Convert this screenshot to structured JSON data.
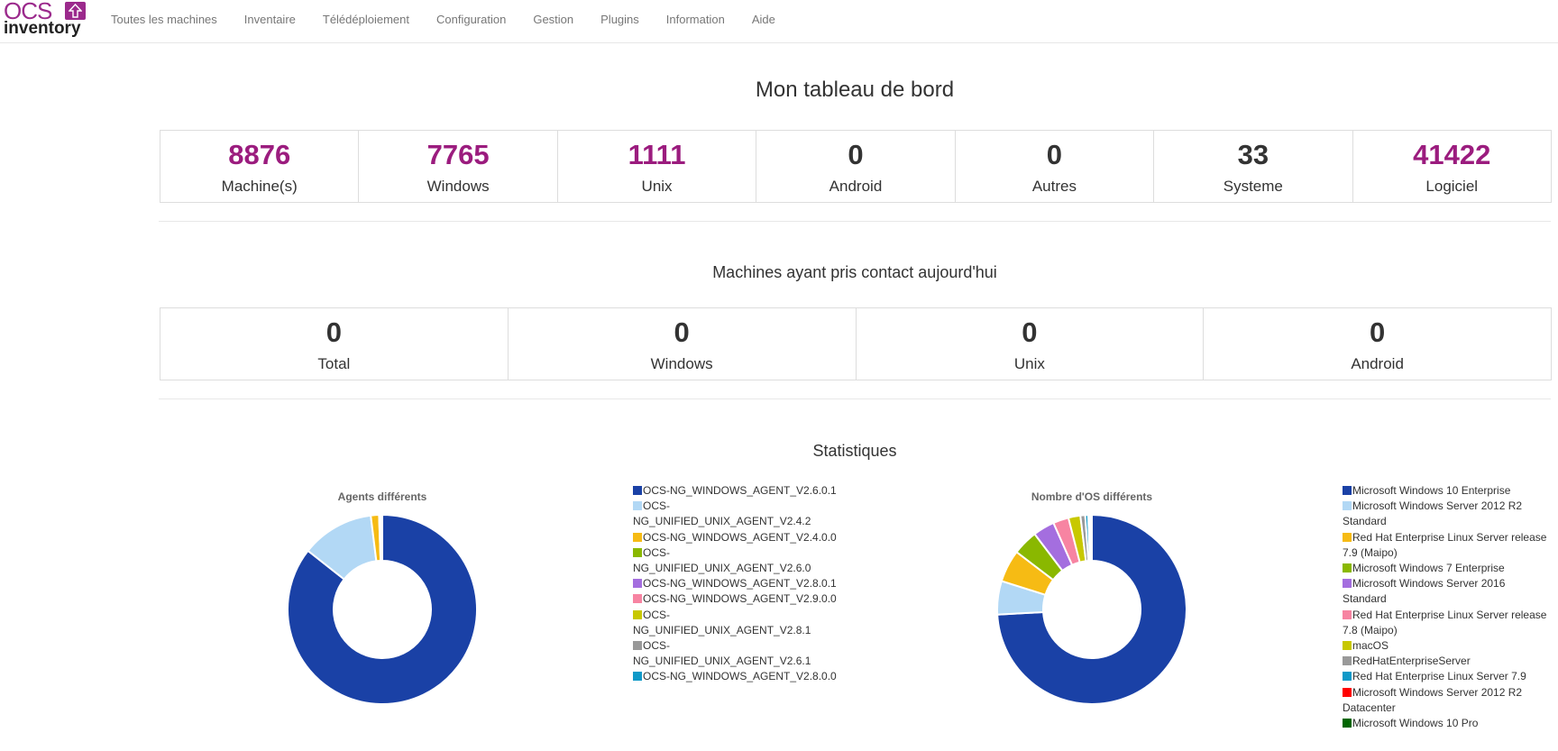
{
  "navbar": {
    "logo": {
      "top": "OCS",
      "bottom": "inventory",
      "icon": "upload-arrow-icon"
    },
    "items": [
      {
        "label": "Toutes les machines"
      },
      {
        "label": "Inventaire"
      },
      {
        "label": "Télédéploiement"
      },
      {
        "label": "Configuration"
      },
      {
        "label": "Gestion"
      },
      {
        "label": "Plugins"
      },
      {
        "label": "Information"
      },
      {
        "label": "Aide"
      }
    ]
  },
  "dashboard": {
    "title": "Mon tableau de bord",
    "summary": [
      {
        "value": "8876",
        "label": "Machine(s)",
        "color": "#9b1c7e"
      },
      {
        "value": "7765",
        "label": "Windows",
        "color": "#9b1c7e"
      },
      {
        "value": "1111",
        "label": "Unix",
        "color": "#9b1c7e"
      },
      {
        "value": "0",
        "label": "Android",
        "color": "#333333"
      },
      {
        "value": "0",
        "label": "Autres",
        "color": "#333333"
      },
      {
        "value": "33",
        "label": "Systeme",
        "color": "#333333"
      },
      {
        "value": "41422",
        "label": "Logiciel",
        "color": "#9b1c7e"
      }
    ],
    "today_title": "Machines ayant pris contact aujourd'hui",
    "today": [
      {
        "value": "0",
        "label": "Total"
      },
      {
        "value": "0",
        "label": "Windows"
      },
      {
        "value": "0",
        "label": "Unix"
      },
      {
        "value": "0",
        "label": "Android"
      }
    ],
    "stats_title": "Statistiques"
  },
  "chart_data": [
    {
      "type": "pie",
      "subtype": "donut",
      "title": "Agents différents",
      "categories": [
        "OCS-NG_WINDOWS_AGENT_V2.6.0.1",
        "OCS-NG_UNIFIED_UNIX_AGENT_V2.4.2",
        "OCS-NG_WINDOWS_AGENT_V2.4.0.0",
        "OCS-NG_UNIFIED_UNIX_AGENT_V2.6.0",
        "OCS-NG_WINDOWS_AGENT_V2.8.0.1",
        "OCS-NG_WINDOWS_AGENT_V2.9.0.0",
        "OCS-NG_UNIFIED_UNIX_AGENT_V2.8.1",
        "OCS-NG_UNIFIED_UNIX_AGENT_V2.6.1",
        "OCS-NG_WINDOWS_AGENT_V2.8.0.0"
      ],
      "legend_display": [
        [
          "OCS-NG_WINDOWS_AGENT_V2.6.0.1"
        ],
        [
          "OCS-",
          "NG_UNIFIED_UNIX_AGENT_V2.4.2"
        ],
        [
          "OCS-NG_WINDOWS_AGENT_V2.4.0.0"
        ],
        [
          "OCS-",
          "NG_UNIFIED_UNIX_AGENT_V2.6.0"
        ],
        [
          "OCS-NG_WINDOWS_AGENT_V2.8.0.1"
        ],
        [
          "OCS-NG_WINDOWS_AGENT_V2.9.0.0"
        ],
        [
          "OCS-",
          "NG_UNIFIED_UNIX_AGENT_V2.8.1"
        ],
        [
          "OCS-",
          "NG_UNIFIED_UNIX_AGENT_V2.6.1"
        ],
        [
          "OCS-NG_WINDOWS_AGENT_V2.8.0.0"
        ]
      ],
      "values": [
        85.6,
        12.4,
        1.4,
        0.15,
        0.1,
        0.1,
        0.1,
        0.05,
        0.05
      ],
      "colors": [
        "#1a41a6",
        "#b2d8f5",
        "#f6bb14",
        "#8ab800",
        "#a46edf",
        "#f784a2",
        "#c8c800",
        "#999999",
        "#0f99c8"
      ],
      "legend_position": "right"
    },
    {
      "type": "pie",
      "subtype": "donut",
      "title": "Nombre d'OS différents",
      "categories": [
        "Microsoft Windows 10 Enterprise",
        "Microsoft Windows Server 2012 R2 Standard",
        "Red Hat Enterprise Linux Server release 7.9 (Maipo)",
        "Microsoft Windows 7 Enterprise",
        "Microsoft Windows Server 2016 Standard",
        "Red Hat Enterprise Linux Server release 7.8 (Maipo)",
        "macOS",
        "RedHatEnterpriseServer",
        "Red Hat Enterprise Linux Server 7.9",
        "Microsoft Windows Server 2012 R2 Datacenter",
        "Microsoft Windows 10 Pro"
      ],
      "legend_display": [
        [
          "Microsoft Windows 10 Enterprise"
        ],
        [
          "Microsoft Windows Server 2012 R2",
          "Standard"
        ],
        [
          "Red Hat Enterprise Linux Server release",
          "7.9 (Maipo)"
        ],
        [
          "Microsoft Windows 7 Enterprise"
        ],
        [
          "Microsoft Windows Server 2016",
          "Standard"
        ],
        [
          "Red Hat Enterprise Linux Server release",
          "7.8 (Maipo)"
        ],
        [
          "macOS"
        ],
        [
          "RedHatEnterpriseServer"
        ],
        [
          "Red Hat Enterprise Linux Server 7.9"
        ],
        [
          "Microsoft Windows Server 2012 R2",
          "Datacenter"
        ],
        [
          "Microsoft Windows 10 Pro"
        ]
      ],
      "values": [
        72.5,
        5.6,
        5.4,
        4.2,
        3.6,
        2.6,
        2.0,
        0.8,
        0.5,
        0.3,
        0.3
      ],
      "colors": [
        "#1a41a6",
        "#b2d8f5",
        "#f6bb14",
        "#8ab800",
        "#a46edf",
        "#f784a2",
        "#c8c800",
        "#999999",
        "#0f99c8",
        "#ff0000",
        "#006600"
      ],
      "legend_position": "right"
    }
  ]
}
